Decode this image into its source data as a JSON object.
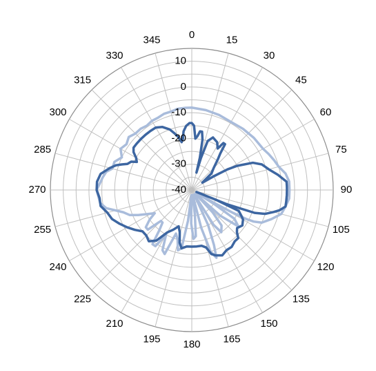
{
  "chart_data": {
    "type": "polar-line",
    "title": "",
    "angle_ticks": [
      "0",
      "15",
      "30",
      "45",
      "60",
      "75",
      "90",
      "105",
      "120",
      "135",
      "150",
      "165",
      "180",
      "195",
      "210",
      "225",
      "240",
      "255",
      "270",
      "285",
      "300",
      "315",
      "330",
      "345"
    ],
    "radial_ticks": [
      "10",
      "0",
      "-10",
      "-20",
      "-30",
      "-40"
    ],
    "rlim": [
      -40,
      15
    ],
    "direction": "clockwise",
    "zero_direction": "top",
    "series": [
      {
        "color": "#a9bcdb",
        "width": 3.5,
        "points": [
          [
            0,
            -8
          ],
          [
            10,
            -8.5
          ],
          [
            20,
            -9
          ],
          [
            30,
            -9.5
          ],
          [
            40,
            -9
          ],
          [
            50,
            -8.5
          ],
          [
            60,
            -8
          ],
          [
            65,
            -7
          ],
          [
            70,
            -6
          ],
          [
            75,
            -5
          ],
          [
            80,
            -3
          ],
          [
            85,
            -2
          ],
          [
            90,
            -2
          ],
          [
            95,
            -2
          ],
          [
            100,
            -3
          ],
          [
            105,
            -4
          ],
          [
            110,
            -7
          ],
          [
            115,
            -10
          ],
          [
            117,
            -13
          ],
          [
            118,
            -16
          ],
          [
            119,
            -22
          ],
          [
            120,
            -30
          ],
          [
            121,
            -38
          ],
          [
            122,
            -30
          ],
          [
            124,
            -20
          ],
          [
            128,
            -17
          ],
          [
            132,
            -25
          ],
          [
            135,
            -38
          ],
          [
            137,
            -28
          ],
          [
            140,
            -22
          ],
          [
            145,
            -20
          ],
          [
            148,
            -24
          ],
          [
            152,
            -38
          ],
          [
            155,
            -25
          ],
          [
            158,
            -17
          ],
          [
            160,
            -12
          ],
          [
            163,
            -15
          ],
          [
            166,
            -25
          ],
          [
            170,
            -38
          ],
          [
            173,
            -30
          ],
          [
            175,
            -22
          ],
          [
            178,
            -21
          ],
          [
            181,
            -27
          ],
          [
            184,
            -38
          ],
          [
            187,
            -28
          ],
          [
            190,
            -17
          ],
          [
            193,
            -16
          ],
          [
            196,
            -20
          ],
          [
            200,
            -22
          ],
          [
            203,
            -13
          ],
          [
            206,
            -14
          ],
          [
            210,
            -20
          ],
          [
            213,
            -14
          ],
          [
            216,
            -14
          ],
          [
            219,
            -20
          ],
          [
            222,
            -23
          ],
          [
            225,
            -23
          ],
          [
            228,
            -17
          ],
          [
            231,
            -17
          ],
          [
            235,
            -20
          ],
          [
            238,
            -23
          ],
          [
            242,
            -20
          ],
          [
            245,
            -17
          ],
          [
            248,
            -14
          ],
          [
            252,
            -12
          ],
          [
            258,
            -6
          ],
          [
            262,
            -4
          ],
          [
            270,
            -3
          ],
          [
            278,
            -5
          ],
          [
            282,
            -6
          ],
          [
            285,
            -8
          ],
          [
            290,
            -8
          ],
          [
            295,
            -10
          ],
          [
            300,
            -8
          ],
          [
            305,
            -9
          ],
          [
            310,
            -8
          ],
          [
            315,
            -9
          ],
          [
            320,
            -9
          ],
          [
            325,
            -9.5
          ],
          [
            330,
            -9
          ],
          [
            335,
            -9
          ],
          [
            340,
            -8.5
          ],
          [
            345,
            -8.5
          ],
          [
            350,
            -8
          ],
          [
            355,
            -8
          ],
          [
            360,
            -8
          ]
        ]
      },
      {
        "color": "#3d66a1",
        "width": 3.5,
        "points": [
          [
            0,
            -14
          ],
          [
            2,
            -15
          ],
          [
            4,
            -20
          ],
          [
            6,
            -19
          ],
          [
            8,
            -17
          ],
          [
            10,
            -17
          ],
          [
            12,
            -20
          ],
          [
            14,
            -27
          ],
          [
            15,
            -33
          ],
          [
            16,
            -27
          ],
          [
            18,
            -20
          ],
          [
            22,
            -18
          ],
          [
            28,
            -19
          ],
          [
            32,
            -21
          ],
          [
            34,
            -18
          ],
          [
            36,
            -18
          ],
          [
            38,
            -22
          ],
          [
            40,
            -24
          ],
          [
            45,
            -28
          ],
          [
            50,
            -30
          ],
          [
            55,
            -35
          ],
          [
            58,
            -30
          ],
          [
            60,
            -24
          ],
          [
            62,
            -20
          ],
          [
            66,
            -14
          ],
          [
            70,
            -11
          ],
          [
            75,
            -9
          ],
          [
            80,
            -6
          ],
          [
            85,
            -3
          ],
          [
            88,
            -3
          ],
          [
            90,
            -3
          ],
          [
            93,
            -3
          ],
          [
            97,
            -3
          ],
          [
            100,
            -3
          ],
          [
            103,
            -5
          ],
          [
            105,
            -7
          ],
          [
            108,
            -10
          ],
          [
            110,
            -14
          ],
          [
            112,
            -25
          ],
          [
            113,
            -38
          ],
          [
            112,
            -30
          ],
          [
            114,
            -20
          ],
          [
            118,
            -18
          ],
          [
            120,
            -17
          ],
          [
            125,
            -16
          ],
          [
            130,
            -17
          ],
          [
            133,
            -16
          ],
          [
            136,
            -14
          ],
          [
            140,
            -14
          ],
          [
            145,
            -13
          ],
          [
            150,
            -13
          ],
          [
            155,
            -12
          ],
          [
            160,
            -13
          ],
          [
            163,
            -14
          ],
          [
            166,
            -17
          ],
          [
            170,
            -18
          ],
          [
            175,
            -18
          ],
          [
            180,
            -18
          ],
          [
            185,
            -18
          ],
          [
            190,
            -17
          ],
          [
            193,
            -19
          ],
          [
            196,
            -23
          ],
          [
            200,
            -25
          ],
          [
            205,
            -23
          ],
          [
            210,
            -21
          ],
          [
            215,
            -16
          ],
          [
            220,
            -14
          ],
          [
            225,
            -15
          ],
          [
            230,
            -15
          ],
          [
            235,
            -13
          ],
          [
            240,
            -11
          ],
          [
            245,
            -9
          ],
          [
            250,
            -7
          ],
          [
            255,
            -6
          ],
          [
            260,
            -4
          ],
          [
            265,
            -4
          ],
          [
            270,
            -3
          ],
          [
            275,
            -3
          ],
          [
            280,
            -4
          ],
          [
            285,
            -7
          ],
          [
            288,
            -9
          ],
          [
            290,
            -11
          ],
          [
            292,
            -13
          ],
          [
            295,
            -14
          ],
          [
            297,
            -16
          ],
          [
            300,
            -15
          ],
          [
            303,
            -13
          ],
          [
            306,
            -12
          ],
          [
            310,
            -12
          ],
          [
            315,
            -12
          ],
          [
            320,
            -12
          ],
          [
            325,
            -12
          ],
          [
            330,
            -12
          ],
          [
            335,
            -13
          ],
          [
            340,
            -15
          ],
          [
            343,
            -17
          ],
          [
            346,
            -19
          ],
          [
            348,
            -21
          ],
          [
            350,
            -20
          ],
          [
            352,
            -17
          ],
          [
            355,
            -15
          ],
          [
            358,
            -14
          ],
          [
            360,
            -14
          ]
        ]
      }
    ]
  }
}
